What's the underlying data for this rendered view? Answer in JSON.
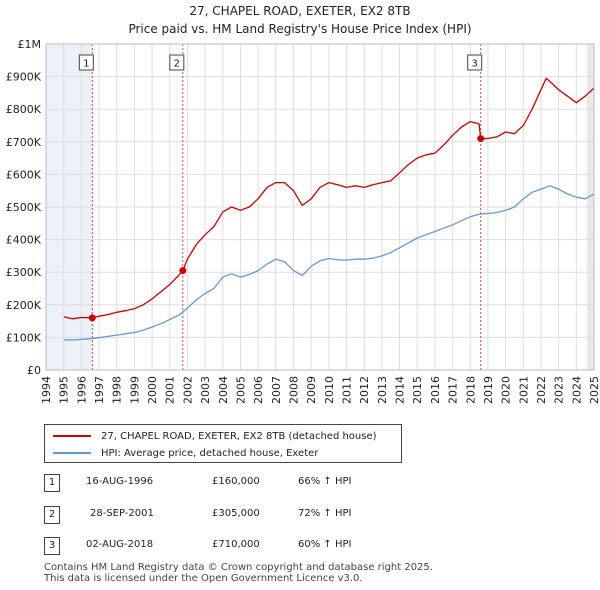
{
  "title": "27, CHAPEL ROAD, EXETER, EX2 8TB",
  "subtitle": "Price paid vs. HM Land Registry's House Price Index (HPI)",
  "legend": {
    "property_label": "27, CHAPEL ROAD, EXETER, EX2 8TB (detached house)",
    "hpi_label": "HPI: Average price, detached house, Exeter"
  },
  "colors": {
    "property": "#cc0000",
    "hpi": "#6699cc",
    "shade": "#dde6f3",
    "marker_line": "#dd4444",
    "grid": "#dddddd"
  },
  "transactions": [
    {
      "num": "1",
      "date": "16-AUG-1996",
      "price": "£160,000",
      "hpi_change": "66% ↑ HPI"
    },
    {
      "num": "2",
      "date": "28-SEP-2001",
      "price": "£305,000",
      "hpi_change": "72% ↑ HPI"
    },
    {
      "num": "3",
      "date": "02-AUG-2018",
      "price": "£710,000",
      "hpi_change": "60% ↑ HPI"
    }
  ],
  "footer": {
    "line1": "Contains HM Land Registry data © Crown copyright and database right 2025.",
    "line2": "This data is licensed under the Open Government Licence v3.0."
  },
  "chart_data": {
    "type": "line",
    "title": "27, CHAPEL ROAD, EXETER, EX2 8TB",
    "subtitle": "Price paid vs. HM Land Registry's House Price Index (HPI)",
    "xlabel": "",
    "ylabel": "",
    "xlim": [
      1994,
      2025
    ],
    "ylim": [
      0,
      1000000
    ],
    "x_ticks": [
      "1994",
      "1995",
      "1996",
      "1997",
      "1998",
      "1999",
      "2000",
      "2001",
      "2002",
      "2003",
      "2004",
      "2005",
      "2006",
      "2007",
      "2008",
      "2009",
      "2010",
      "2011",
      "2012",
      "2013",
      "2014",
      "2015",
      "2016",
      "2017",
      "2018",
      "2019",
      "2020",
      "2021",
      "2022",
      "2023",
      "2024",
      "2025"
    ],
    "y_ticks": [
      {
        "value": 0,
        "label": "£0"
      },
      {
        "value": 100000,
        "label": "£100K"
      },
      {
        "value": 200000,
        "label": "£200K"
      },
      {
        "value": 300000,
        "label": "£300K"
      },
      {
        "value": 400000,
        "label": "£400K"
      },
      {
        "value": 500000,
        "label": "£500K"
      },
      {
        "value": 600000,
        "label": "£600K"
      },
      {
        "value": 700000,
        "label": "£700K"
      },
      {
        "value": 800000,
        "label": "£800K"
      },
      {
        "value": 900000,
        "label": "£900K"
      },
      {
        "value": 1000000,
        "label": "£1M"
      }
    ],
    "series": [
      {
        "name": "27, CHAPEL ROAD, EXETER, EX2 8TB (detached house)",
        "x": [
          1995.0,
          1995.5,
          1996.0,
          1996.62,
          1997.0,
          1997.5,
          1998.0,
          1998.5,
          1999.0,
          1999.5,
          2000.0,
          2000.5,
          2001.0,
          2001.5,
          2001.74,
          2002.0,
          2002.5,
          2003.0,
          2003.5,
          2004.0,
          2004.5,
          2005.0,
          2005.5,
          2006.0,
          2006.5,
          2007.0,
          2007.5,
          2008.0,
          2008.5,
          2009.0,
          2009.5,
          2010.0,
          2010.5,
          2011.0,
          2011.5,
          2012.0,
          2012.5,
          2013.0,
          2013.5,
          2014.0,
          2014.5,
          2015.0,
          2015.5,
          2016.0,
          2016.5,
          2017.0,
          2017.5,
          2018.0,
          2018.5,
          2018.59,
          2019.0,
          2019.5,
          2020.0,
          2020.5,
          2021.0,
          2021.5,
          2022.0,
          2022.3,
          2022.6,
          2023.0,
          2023.5,
          2024.0,
          2024.5,
          2025.0
        ],
        "values": [
          163000,
          157000,
          161000,
          160000,
          165000,
          170000,
          177000,
          182000,
          188000,
          200000,
          218000,
          240000,
          262000,
          290000,
          305000,
          340000,
          385000,
          415000,
          440000,
          485000,
          500000,
          490000,
          500000,
          525000,
          560000,
          575000,
          575000,
          550000,
          505000,
          525000,
          560000,
          575000,
          568000,
          560000,
          565000,
          560000,
          568000,
          575000,
          580000,
          605000,
          630000,
          650000,
          660000,
          665000,
          690000,
          720000,
          745000,
          762000,
          755000,
          710000,
          710000,
          715000,
          730000,
          725000,
          750000,
          800000,
          860000,
          895000,
          880000,
          860000,
          840000,
          820000,
          840000,
          865000
        ]
      },
      {
        "name": "HPI: Average price, detached house, Exeter",
        "x": [
          1995.0,
          1995.5,
          1996.0,
          1996.5,
          1997.0,
          1997.5,
          1998.0,
          1998.5,
          1999.0,
          1999.5,
          2000.0,
          2000.5,
          2001.0,
          2001.5,
          2002.0,
          2002.5,
          2003.0,
          2003.5,
          2004.0,
          2004.5,
          2005.0,
          2005.5,
          2006.0,
          2006.5,
          2007.0,
          2007.5,
          2008.0,
          2008.5,
          2009.0,
          2009.5,
          2010.0,
          2010.5,
          2011.0,
          2011.5,
          2012.0,
          2012.5,
          2013.0,
          2013.5,
          2014.0,
          2014.5,
          2015.0,
          2015.5,
          2016.0,
          2016.5,
          2017.0,
          2017.5,
          2018.0,
          2018.5,
          2019.0,
          2019.5,
          2020.0,
          2020.5,
          2021.0,
          2021.5,
          2022.0,
          2022.5,
          2023.0,
          2023.5,
          2024.0,
          2024.5,
          2025.0
        ],
        "values": [
          93000,
          92000,
          94000,
          96000,
          99000,
          103000,
          107000,
          111000,
          115000,
          122000,
          132000,
          142000,
          155000,
          168000,
          190000,
          215000,
          235000,
          250000,
          285000,
          295000,
          285000,
          293000,
          305000,
          325000,
          340000,
          332000,
          305000,
          290000,
          318000,
          335000,
          342000,
          338000,
          337000,
          340000,
          340000,
          343000,
          350000,
          360000,
          375000,
          390000,
          405000,
          415000,
          425000,
          435000,
          445000,
          458000,
          470000,
          478000,
          480000,
          483000,
          490000,
          500000,
          525000,
          545000,
          555000,
          565000,
          555000,
          540000,
          530000,
          525000,
          540000
        ]
      }
    ],
    "sale_markers": [
      {
        "label": "1",
        "x": 1996.62,
        "value": 160000
      },
      {
        "label": "2",
        "x": 2001.74,
        "value": 305000
      },
      {
        "label": "3",
        "x": 2018.59,
        "value": 710000
      }
    ]
  }
}
